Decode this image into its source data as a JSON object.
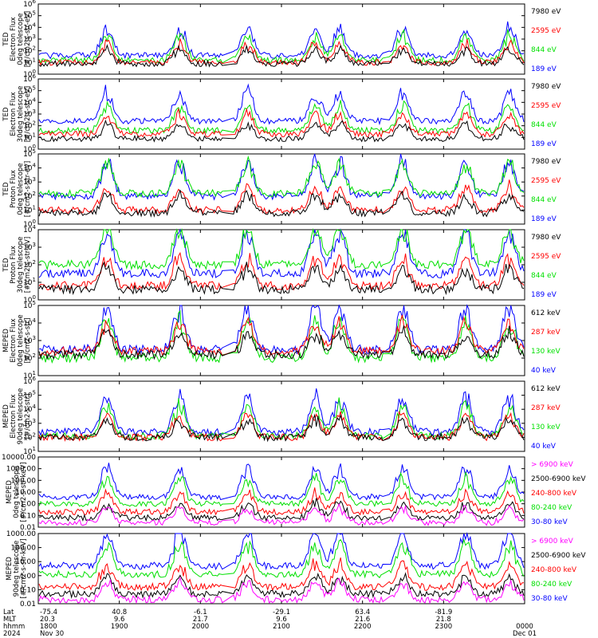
{
  "colors": {
    "blue": "#0000ff",
    "red": "#ff0000",
    "green": "#00e000",
    "black": "#000000",
    "magenta": "#ff00ff"
  },
  "chart_data": [
    {
      "type": "line",
      "ylabel": [
        "TED",
        "Electron Flux",
        "0deg telescope",
        "[#/cm2-s-str-eV]"
      ],
      "y_ticks": [
        "10^0",
        "10^1",
        "10^2",
        "10^3",
        "10^4",
        "10^5",
        "10^6"
      ],
      "ylim_exp": [
        0,
        6
      ],
      "scale": "log",
      "legend": [
        {
          "label": "7980 eV",
          "color": "black"
        },
        {
          "label": "2595 eV",
          "color": "red"
        },
        {
          "label": "844 eV",
          "color": "green"
        },
        {
          "label": "189 eV",
          "color": "blue"
        }
      ],
      "series_levels": {
        "blue": 1.6,
        "green": 1.2,
        "red": 1.0,
        "black": 0.9
      }
    },
    {
      "type": "line",
      "ylabel": [
        "TED",
        "Electron Flux",
        "30deg telescope",
        "[#/cm2-s-str-eV]"
      ],
      "y_ticks": [
        "10^0",
        "10^1",
        "10^2",
        "10^3",
        "10^4",
        "10^5",
        "10^6"
      ],
      "ylim_exp": [
        0,
        6
      ],
      "scale": "log",
      "legend": [
        {
          "label": "7980 eV",
          "color": "black"
        },
        {
          "label": "2595 eV",
          "color": "red"
        },
        {
          "label": "844 eV",
          "color": "green"
        },
        {
          "label": "189 eV",
          "color": "blue"
        }
      ],
      "series_levels": {
        "blue": 2.4,
        "green": 1.6,
        "red": 1.3,
        "black": 0.9
      }
    },
    {
      "type": "line",
      "ylabel": [
        "TED",
        "Proton Flux",
        "0deg telescope",
        "[#/cm2-s-str-eV]"
      ],
      "y_ticks": [
        "10^0",
        "10^1",
        "10^2",
        "10^3",
        "10^4",
        "10^5"
      ],
      "ylim_exp": [
        0,
        5
      ],
      "scale": "log",
      "legend": [
        {
          "label": "7980 eV",
          "color": "black"
        },
        {
          "label": "2595 eV",
          "color": "red"
        },
        {
          "label": "844 eV",
          "color": "green"
        },
        {
          "label": "189 eV",
          "color": "blue"
        }
      ],
      "series_levels": {
        "blue": 2.0,
        "green": 2.2,
        "red": 1.0,
        "black": 0.8
      }
    },
    {
      "type": "line",
      "ylabel": [
        "TED",
        "Proton Flux",
        "30deg telescope",
        "[#/cm2-s-str-eV]"
      ],
      "y_ticks": [
        "10^0",
        "10^1",
        "10^2",
        "10^3",
        "10^4"
      ],
      "ylim_exp": [
        0,
        4
      ],
      "scale": "log",
      "legend": [
        {
          "label": "7980 eV",
          "color": "black"
        },
        {
          "label": "2595 eV",
          "color": "red"
        },
        {
          "label": "844 eV",
          "color": "green"
        },
        {
          "label": "189 eV",
          "color": "blue"
        }
      ],
      "series_levels": {
        "blue": 1.5,
        "green": 2.0,
        "red": 0.8,
        "black": 0.6
      }
    },
    {
      "type": "line",
      "ylabel": [
        "MEPED",
        "Electron Flux",
        "0deg telescope",
        "[#/cm2-s-str]"
      ],
      "y_ticks": [
        "10^1",
        "10^2",
        "10^3",
        "10^4",
        "10^5"
      ],
      "ylim_exp": [
        1,
        5
      ],
      "scale": "log",
      "legend": [
        {
          "label": "612 keV",
          "color": "black"
        },
        {
          "label": "287 keV",
          "color": "red"
        },
        {
          "label": "130 keV",
          "color": "green"
        },
        {
          "label": "40 keV",
          "color": "blue"
        }
      ],
      "series_levels": {
        "blue": 2.5,
        "green": 2.0,
        "red": 2.4,
        "black": 2.2
      }
    },
    {
      "type": "line",
      "ylabel": [
        "MEPED",
        "Electron Flux",
        "90deg telescope",
        "[#/cm2-s-str]"
      ],
      "y_ticks": [
        "10^1",
        "10^2",
        "10^3",
        "10^4",
        "10^5",
        "10^6"
      ],
      "ylim_exp": [
        1,
        6
      ],
      "scale": "log",
      "legend": [
        {
          "label": "612 keV",
          "color": "black"
        },
        {
          "label": "287 keV",
          "color": "red"
        },
        {
          "label": "130 keV",
          "color": "green"
        },
        {
          "label": "40 keV",
          "color": "blue"
        }
      ],
      "series_levels": {
        "blue": 2.4,
        "green": 2.1,
        "red": 2.0,
        "black": 2.0
      }
    },
    {
      "type": "line",
      "ylabel": [
        "MEPED",
        "0deg telescope",
        "[#/cm2-s-str-keV]"
      ],
      "y_ticks": [
        "0.01",
        "0.10",
        "1.00",
        "10.00",
        "100.00",
        "1000.00",
        "10000.00"
      ],
      "ylim_exp": [
        -2,
        4
      ],
      "scale": "log",
      "legend": [
        {
          "label": "> 6900 keV",
          "color": "magenta"
        },
        {
          "label": "2500-6900 keV",
          "color": "black"
        },
        {
          "label": "240-800 keV",
          "color": "red"
        },
        {
          "label": "80-240 keV",
          "color": "green"
        },
        {
          "label": "30-80 keV",
          "color": "blue"
        }
      ],
      "series_levels": {
        "blue": 0.6,
        "green": 0.0,
        "red": -0.7,
        "black": -1.2,
        "magenta": -1.6
      }
    },
    {
      "type": "line",
      "ylabel": [
        "MEPED",
        "90deg telescope",
        "[#/cm2-s-str-keV]"
      ],
      "y_ticks": [
        "0.01",
        "0.10",
        "1.00",
        "10.00",
        "100.00",
        "1000.00"
      ],
      "ylim_exp": [
        -2,
        3
      ],
      "scale": "log",
      "legend": [
        {
          "label": "> 6900 keV",
          "color": "magenta"
        },
        {
          "label": "2500-6900 keV",
          "color": "black"
        },
        {
          "label": "240-800 keV",
          "color": "red"
        },
        {
          "label": "80-240 keV",
          "color": "green"
        },
        {
          "label": "30-80 keV",
          "color": "blue"
        }
      ],
      "series_levels": {
        "blue": 0.7,
        "green": 0.1,
        "red": -0.8,
        "black": -1.3,
        "magenta": -1.7
      }
    }
  ],
  "x_axis": {
    "row_labels": [
      "Lat",
      "MLT",
      "hhmm",
      "2024"
    ],
    "ticks": [
      {
        "lat": "-75.4",
        "mlt": "20.3",
        "hhmm": "1800",
        "date": "Nov 30"
      },
      {
        "lat": "40.8",
        "mlt": "9.6",
        "hhmm": "1900",
        "date": ""
      },
      {
        "lat": "-6.1",
        "mlt": "21.7",
        "hhmm": "2000",
        "date": ""
      },
      {
        "lat": "-29.1",
        "mlt": "9.6",
        "hhmm": "2100",
        "date": ""
      },
      {
        "lat": "63.4",
        "mlt": "21.6",
        "hhmm": "2200",
        "date": ""
      },
      {
        "lat": "-81.9",
        "mlt": "21.8",
        "hhmm": "2300",
        "date": ""
      },
      {
        "lat": "",
        "mlt": "",
        "hhmm": "0000",
        "date": "Dec 01"
      }
    ]
  }
}
